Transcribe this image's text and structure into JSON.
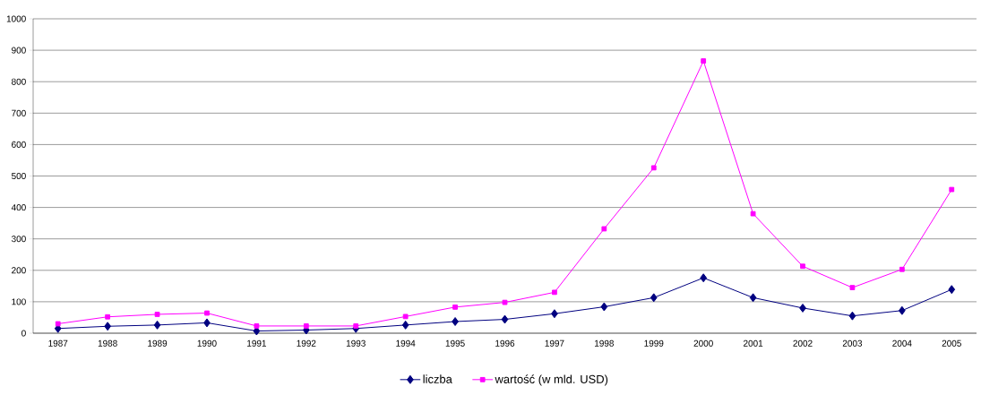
{
  "chart_data": {
    "type": "line",
    "categories": [
      "1987",
      "1988",
      "1989",
      "1990",
      "1991",
      "1992",
      "1993",
      "1994",
      "1995",
      "1996",
      "1997",
      "1998",
      "1999",
      "2000",
      "2001",
      "2002",
      "2003",
      "2004",
      "2005"
    ],
    "series": [
      {
        "name": "liczba",
        "color": "#000080",
        "marker": "diamond",
        "values": [
          15,
          22,
          26,
          33,
          7,
          10,
          15,
          26,
          37,
          44,
          62,
          84,
          113,
          176,
          113,
          80,
          55,
          72,
          139
        ]
      },
      {
        "name": "wartość (w mld. USD)",
        "color": "#ff00ff",
        "marker": "square",
        "values": [
          30,
          52,
          60,
          64,
          23,
          23,
          23,
          53,
          83,
          98,
          130,
          332,
          526,
          866,
          380,
          213,
          145,
          203,
          457
        ]
      }
    ],
    "ylim": [
      0,
      1000
    ],
    "yticks": [
      0,
      100,
      200,
      300,
      400,
      500,
      600,
      700,
      800,
      900,
      1000
    ],
    "grid": "y",
    "legend": "bottom"
  }
}
